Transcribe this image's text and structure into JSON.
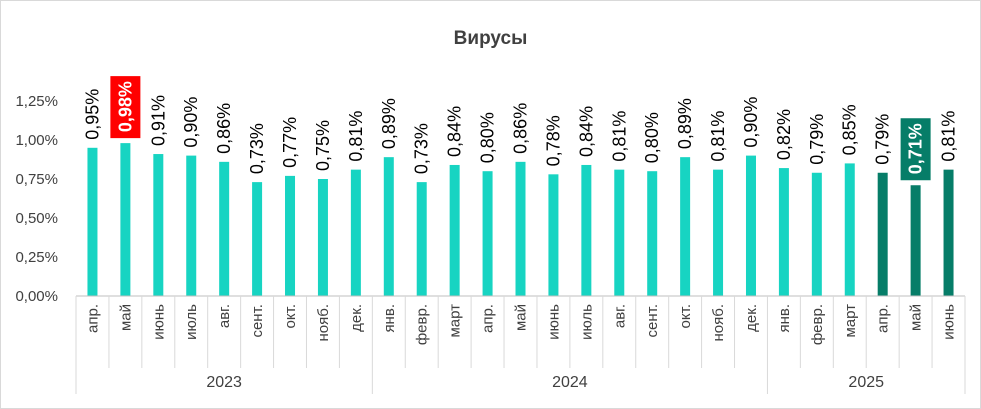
{
  "chart_data": {
    "type": "bar",
    "title": "Вирусы",
    "xlabel": "",
    "ylabel": "",
    "ylim": [
      0,
      1.25
    ],
    "y_ticks": [
      "0,00%",
      "0,25%",
      "0,50%",
      "0,75%",
      "1,00%",
      "1,25%"
    ],
    "y_tick_values": [
      0,
      0.25,
      0.5,
      0.75,
      1.0,
      1.25
    ],
    "grid": false,
    "legend": "none",
    "categories": [
      "апр.",
      "май",
      "июнь",
      "июль",
      "авг.",
      "сент.",
      "окт.",
      "нояб.",
      "дек.",
      "янв.",
      "февр.",
      "март",
      "апр.",
      "май",
      "июнь",
      "июль",
      "авг.",
      "сент.",
      "окт.",
      "нояб.",
      "дек.",
      "янв.",
      "февр.",
      "март",
      "апр.",
      "май",
      "июнь"
    ],
    "groups": [
      {
        "label": "2023",
        "count": 9
      },
      {
        "label": "2024",
        "count": 12
      },
      {
        "label": "2025",
        "count": 6
      }
    ],
    "values": [
      0.95,
      0.98,
      0.91,
      0.9,
      0.86,
      0.73,
      0.77,
      0.75,
      0.81,
      0.89,
      0.73,
      0.84,
      0.8,
      0.86,
      0.78,
      0.84,
      0.81,
      0.8,
      0.89,
      0.81,
      0.9,
      0.82,
      0.79,
      0.85,
      0.79,
      0.71,
      0.81
    ],
    "labels": [
      "0,95%",
      "0,98%",
      "0,91%",
      "0,90%",
      "0,86%",
      "0,73%",
      "0,77%",
      "0,75%",
      "0,81%",
      "0,89%",
      "0,73%",
      "0,84%",
      "0,80%",
      "0,86%",
      "0,78%",
      "0,84%",
      "0,81%",
      "0,80%",
      "0,89%",
      "0,81%",
      "0,90%",
      "0,82%",
      "0,79%",
      "0,85%",
      "0,79%",
      "0,71%",
      "0,81%"
    ],
    "bar_colors": [
      "#17d4c2",
      "#17d4c2",
      "#17d4c2",
      "#17d4c2",
      "#17d4c2",
      "#17d4c2",
      "#17d4c2",
      "#17d4c2",
      "#17d4c2",
      "#17d4c2",
      "#17d4c2",
      "#17d4c2",
      "#17d4c2",
      "#17d4c2",
      "#17d4c2",
      "#17d4c2",
      "#17d4c2",
      "#17d4c2",
      "#17d4c2",
      "#17d4c2",
      "#17d4c2",
      "#17d4c2",
      "#17d4c2",
      "#17d4c2",
      "#067d68",
      "#067d68",
      "#067d68"
    ],
    "label_highlights": [
      {
        "index": 1,
        "color": "#ff0000"
      },
      {
        "index": 25,
        "color": "#067d68"
      }
    ]
  }
}
